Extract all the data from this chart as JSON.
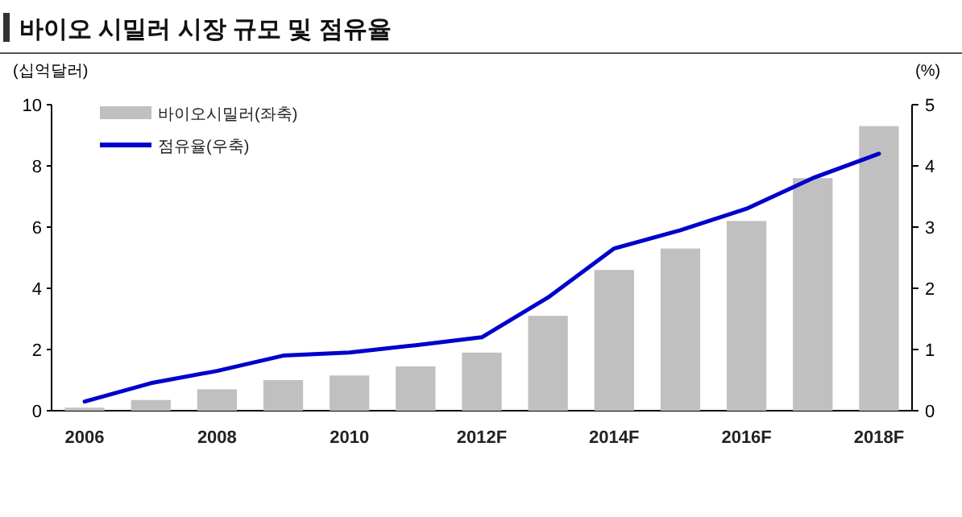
{
  "chart_data": {
    "type": "bar",
    "title": "바이오 시밀러 시장 규모 및 점유율",
    "ylabel": "(십억달러)",
    "y2label": "(%)",
    "categories": [
      "2006",
      null,
      "2008",
      null,
      "2010",
      null,
      "2012F",
      null,
      "2014F",
      null,
      "2016F",
      null,
      "2018F"
    ],
    "series": [
      {
        "name": "바이오시밀러(좌축)",
        "color": "#c0c0c0",
        "values": [
          0.1,
          0.35,
          0.7,
          1.0,
          1.15,
          1.45,
          1.9,
          3.1,
          4.6,
          5.3,
          6.2,
          7.6,
          9.3
        ]
      },
      {
        "name": "점유율(우축)",
        "type": "line",
        "axis": "y2",
        "color": "#0000cc",
        "values": [
          0.15,
          0.45,
          0.65,
          0.9,
          0.95,
          1.07,
          1.2,
          1.85,
          2.65,
          2.95,
          3.3,
          3.8,
          4.2
        ]
      }
    ],
    "ylim": [
      0,
      10
    ],
    "yticks": [
      0,
      2,
      4,
      6,
      8,
      10
    ],
    "y2lim": [
      0,
      5
    ],
    "y2ticks": [
      0,
      1,
      2,
      3,
      4,
      5
    ],
    "legend": "top left"
  }
}
